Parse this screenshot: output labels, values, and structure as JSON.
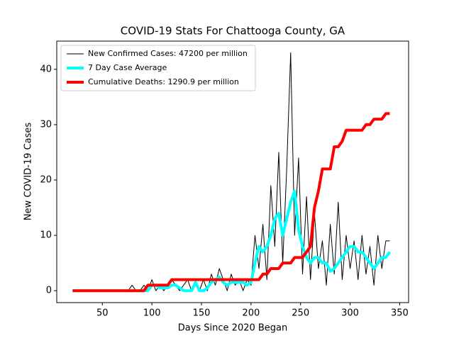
{
  "chart_data": {
    "type": "line",
    "title": "COVID-19 Stats For Chattooga County, GA",
    "x_label": "Days Since 2020 Began",
    "y_label": "New COVID-19 Cases",
    "x": [
      20,
      24,
      28,
      32,
      36,
      40,
      44,
      48,
      52,
      56,
      60,
      64,
      68,
      72,
      76,
      80,
      84,
      88,
      92,
      96,
      100,
      104,
      108,
      112,
      116,
      120,
      124,
      128,
      132,
      136,
      140,
      144,
      148,
      152,
      156,
      160,
      164,
      168,
      172,
      176,
      180,
      184,
      188,
      192,
      196,
      200,
      204,
      208,
      212,
      216,
      220,
      224,
      228,
      232,
      236,
      240,
      244,
      248,
      252,
      256,
      260,
      264,
      268,
      272,
      276,
      280,
      284,
      288,
      292,
      296,
      300,
      304,
      308,
      312,
      316,
      320,
      324,
      328,
      332,
      336,
      340
    ],
    "series": [
      {
        "name": "New Confirmed Cases: 47200 per million",
        "color": "#000000",
        "width": 1,
        "values": [
          0,
          0,
          0,
          0,
          0,
          0,
          0,
          0,
          0,
          0,
          0,
          0,
          0,
          0,
          0,
          1,
          0,
          0,
          1,
          0,
          2,
          0,
          1,
          0,
          1,
          2,
          1,
          0,
          1,
          2,
          0,
          1,
          0,
          2,
          0,
          3,
          1,
          4,
          2,
          0,
          3,
          1,
          2,
          0,
          2,
          1,
          10,
          4,
          12,
          2,
          19,
          8,
          25,
          5,
          22,
          43,
          10,
          24,
          3,
          17,
          2,
          14,
          4,
          9,
          1,
          12,
          3,
          16,
          2,
          10,
          4,
          9,
          2,
          10,
          3,
          8,
          1,
          10,
          4,
          9,
          9
        ]
      },
      {
        "name": "7 Day Case Average",
        "color": "#00ffff",
        "width": 4,
        "values": [
          0,
          0,
          0,
          0,
          0,
          0,
          0,
          0,
          0,
          0,
          0,
          0,
          0,
          0,
          0,
          0,
          0,
          0,
          0,
          0,
          1,
          1,
          0.5,
          0.5,
          0.5,
          1,
          1,
          0.5,
          0,
          0,
          0,
          1.5,
          0,
          0,
          0.5,
          1.5,
          2,
          2.5,
          1.5,
          1,
          1.5,
          1.5,
          1.5,
          1.5,
          1,
          1.5,
          5,
          8,
          7,
          8,
          10,
          13,
          14,
          10,
          13,
          16,
          18,
          11,
          8,
          6,
          5,
          6,
          6,
          5,
          5,
          3.5,
          4,
          5,
          6,
          7,
          8,
          8,
          7,
          7,
          6,
          5,
          4,
          5,
          6,
          6,
          7
        ]
      },
      {
        "name": "Cumulative Deaths: 1290.9 per million",
        "color": "#ff0000",
        "width": 4,
        "values": [
          0,
          0,
          0,
          0,
          0,
          0,
          0,
          0,
          0,
          0,
          0,
          0,
          0,
          0,
          0,
          0,
          0,
          0,
          0,
          1,
          1,
          1,
          1,
          1,
          1,
          2,
          2,
          2,
          2,
          2,
          2,
          2,
          2,
          2,
          2,
          2,
          2,
          2,
          2,
          2,
          2,
          2,
          2,
          2,
          2,
          2,
          2,
          2,
          3,
          3,
          4,
          4,
          4,
          5,
          5,
          5,
          6,
          6,
          6,
          7,
          8,
          15,
          18,
          22,
          22,
          22,
          26,
          26,
          27,
          29,
          29,
          29,
          29,
          29,
          30,
          30,
          31,
          31,
          31,
          32,
          32
        ]
      }
    ],
    "xlim": [
      4,
      359
    ],
    "ylim": [
      -2.15,
      45.1
    ],
    "xticks": [
      50,
      100,
      150,
      200,
      250,
      300,
      350
    ],
    "yticks": [
      0,
      10,
      20,
      30,
      40
    ],
    "legend": "upper left"
  }
}
